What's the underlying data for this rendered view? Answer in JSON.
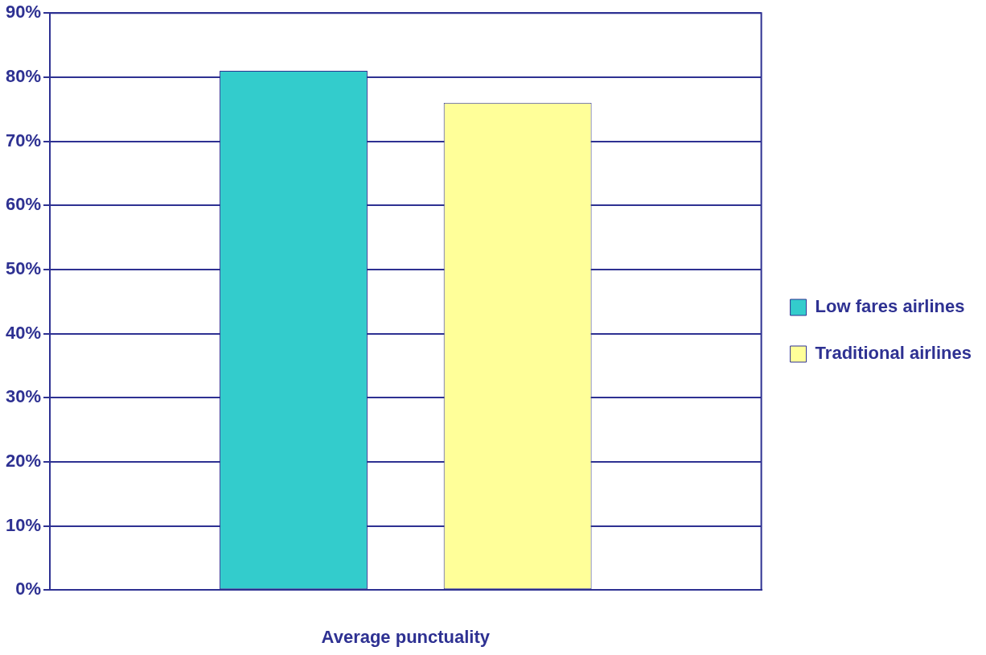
{
  "chart_data": {
    "type": "bar",
    "xlabel": "Average punctuality",
    "categories": [
      null
    ],
    "series": [
      {
        "name": "Low fares airlines",
        "color": "#33cccc",
        "values": [
          81
        ]
      },
      {
        "name": "Traditional airlines",
        "color": "#ffff99",
        "values": [
          76
        ]
      }
    ],
    "ylim": [
      0,
      90
    ],
    "yticks": [
      {
        "value": 0,
        "label": "0%"
      },
      {
        "value": 10,
        "label": "10%"
      },
      {
        "value": 20,
        "label": "20%"
      },
      {
        "value": 30,
        "label": "30%"
      },
      {
        "value": 40,
        "label": "40%"
      },
      {
        "value": 50,
        "label": "50%"
      },
      {
        "value": 60,
        "label": "60%"
      },
      {
        "value": 70,
        "label": "70%"
      },
      {
        "value": 80,
        "label": "80%"
      },
      {
        "value": 90,
        "label": "90%"
      }
    ],
    "grid": "y",
    "legend": "right"
  }
}
